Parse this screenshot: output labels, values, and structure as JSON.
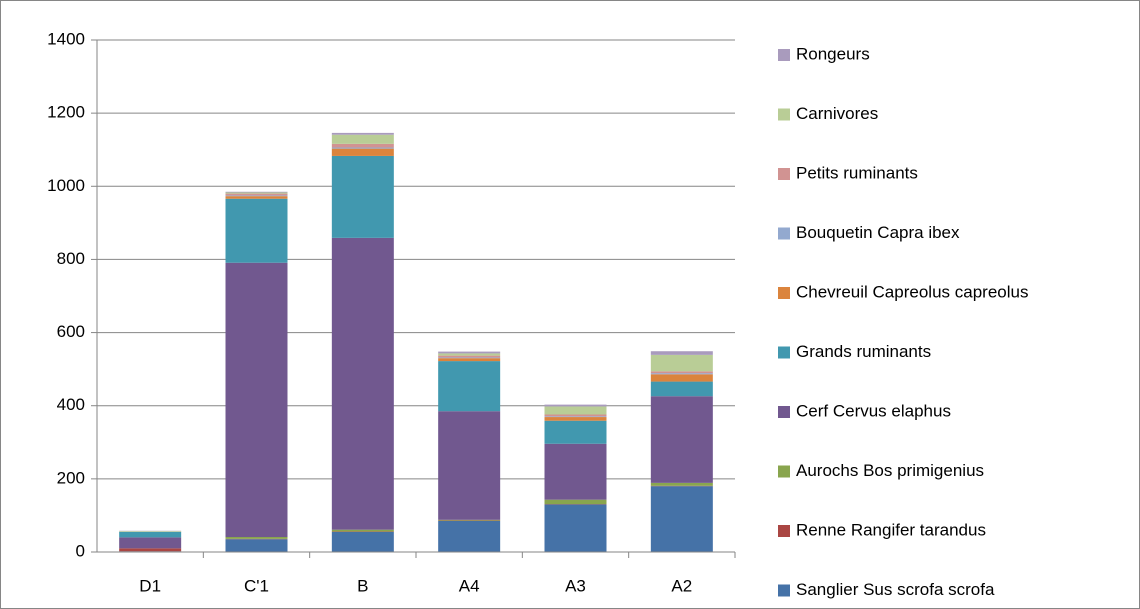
{
  "chart_data": {
    "type": "stacked-bar",
    "categories": [
      "D1",
      "C'1",
      "B",
      "A4",
      "A3",
      "A2"
    ],
    "series": [
      {
        "name": "Sanglier Sus scrofa scrofa",
        "color": "#4572a7",
        "values": [
          2,
          35,
          55,
          85,
          130,
          180
        ]
      },
      {
        "name": "Renne Rangifer tarandus",
        "color": "#aa4643",
        "values": [
          8,
          1,
          1,
          1,
          1,
          1
        ]
      },
      {
        "name": "Aurochs Bos primigenius",
        "color": "#89a54e",
        "values": [
          0,
          5,
          5,
          2,
          12,
          8
        ]
      },
      {
        "name": "Cerf Cervus elaphus",
        "color": "#71588f",
        "values": [
          30,
          750,
          798,
          297,
          153,
          237
        ]
      },
      {
        "name": "Grands ruminants",
        "color": "#4198af",
        "values": [
          15,
          175,
          224,
          137,
          63,
          40
        ]
      },
      {
        "name": "Chevreuil Capreolus capreolus",
        "color": "#db843d",
        "values": [
          0,
          7,
          20,
          8,
          10,
          20
        ]
      },
      {
        "name": "Bouquetin Capra ibex",
        "color": "#93a9cf",
        "values": [
          0,
          2,
          3,
          2,
          2,
          3
        ]
      },
      {
        "name": "Petits ruminants",
        "color": "#d19392",
        "values": [
          0,
          5,
          10,
          5,
          5,
          5
        ]
      },
      {
        "name": "Carnivores",
        "color": "#b9cd96",
        "values": [
          2,
          3,
          25,
          6,
          22,
          45
        ]
      },
      {
        "name": "Rongeurs",
        "color": "#a99bbd",
        "values": [
          1,
          2,
          5,
          5,
          5,
          10
        ]
      }
    ],
    "ylim": [
      0,
      1400
    ],
    "yticks": [
      0,
      200,
      400,
      600,
      800,
      1000,
      1200,
      1400
    ],
    "grid": true,
    "legend": "right"
  }
}
